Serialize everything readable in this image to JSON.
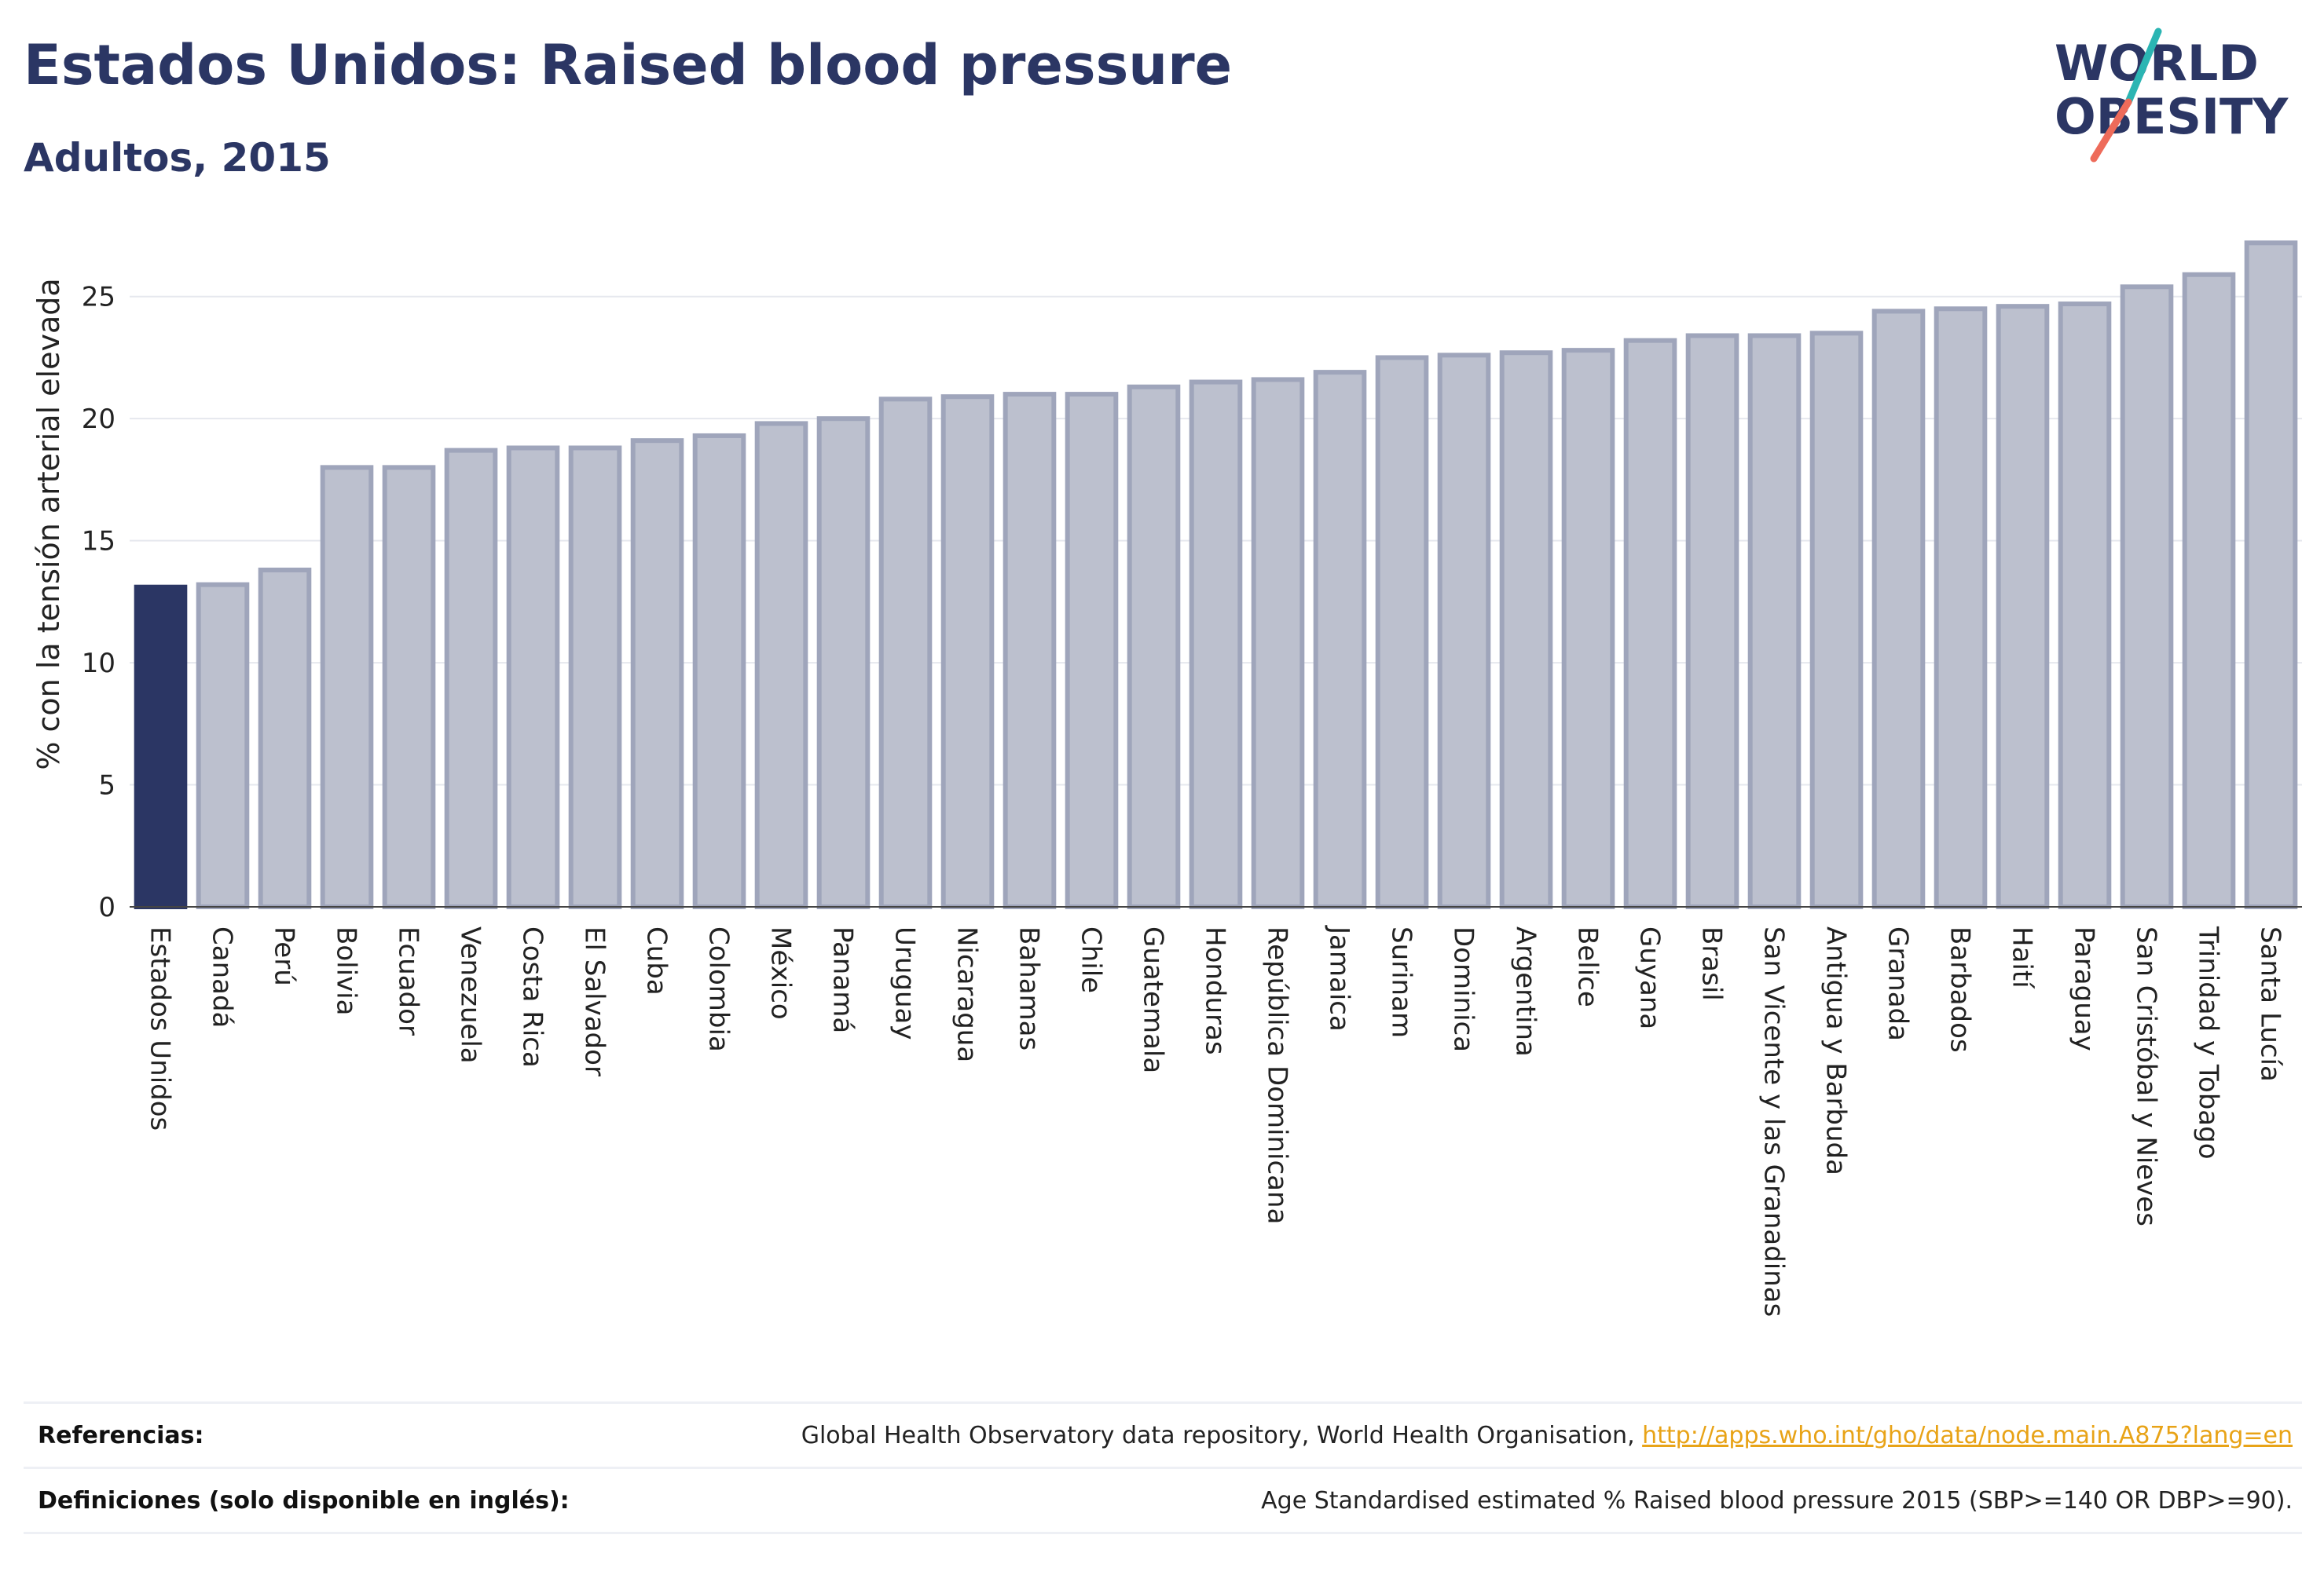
{
  "header": {
    "title": "Estados Unidos: Raised blood pressure",
    "subtitle": "Adultos, 2015"
  },
  "logo": {
    "line1": "WORLD",
    "line2": "OBESITY",
    "navy": "#2b3664",
    "teal": "#2bb5b3",
    "coral": "#ee6b5a"
  },
  "colors": {
    "highlight_bar": "#2b3664",
    "bar_fill": "#bcc0ce",
    "bar_stroke": "#9fa5bb",
    "grid": "#e6e8ee"
  },
  "chart_data": {
    "type": "bar",
    "ylabel": "% con la tensión arterial elevada",
    "xlabel": "",
    "ylim": [
      0,
      27.5
    ],
    "yticks": [
      0,
      5,
      10,
      15,
      20,
      25
    ],
    "grid": true,
    "highlight": "Estados Unidos",
    "categories": [
      "Estados Unidos",
      "Canadá",
      "Perú",
      "Bolivia",
      "Ecuador",
      "Venezuela",
      "Costa Rica",
      "El Salvador",
      "Cuba",
      "Colombia",
      "México",
      "Panamá",
      "Uruguay",
      "Nicaragua",
      "Bahamas",
      "Chile",
      "Guatemala",
      "Honduras",
      "República Dominicana",
      "Jamaica",
      "Surinam",
      "Dominica",
      "Argentina",
      "Belice",
      "Guyana",
      "Brasil",
      "San Vicente y las Granadinas",
      "Antigua y Barbuda",
      "Granada",
      "Barbados",
      "Haití",
      "Paraguay",
      "San Cristóbal y Nieves",
      "Trinidad y Tobago",
      "Santa Lucía"
    ],
    "values": [
      13.1,
      13.2,
      13.8,
      18.0,
      18.0,
      18.7,
      18.8,
      18.8,
      19.1,
      19.3,
      19.8,
      20.0,
      20.8,
      20.9,
      21.0,
      21.0,
      21.3,
      21.5,
      21.6,
      21.9,
      22.5,
      22.6,
      22.7,
      22.8,
      23.2,
      23.4,
      23.4,
      23.5,
      24.4,
      24.5,
      24.6,
      24.7,
      25.4,
      25.9,
      27.2
    ]
  },
  "footer": {
    "references_label": "Referencias:",
    "references_text": "Global Health Observatory data repository, World Health Organisation, ",
    "references_link": "http://apps.who.int/gho/data/node.main.A875?lang=en",
    "definitions_label": "Definiciones (solo disponible en inglés):",
    "definitions_text": "Age Standardised estimated % Raised blood pressure 2015 (SBP>=140 OR DBP>=90)."
  }
}
